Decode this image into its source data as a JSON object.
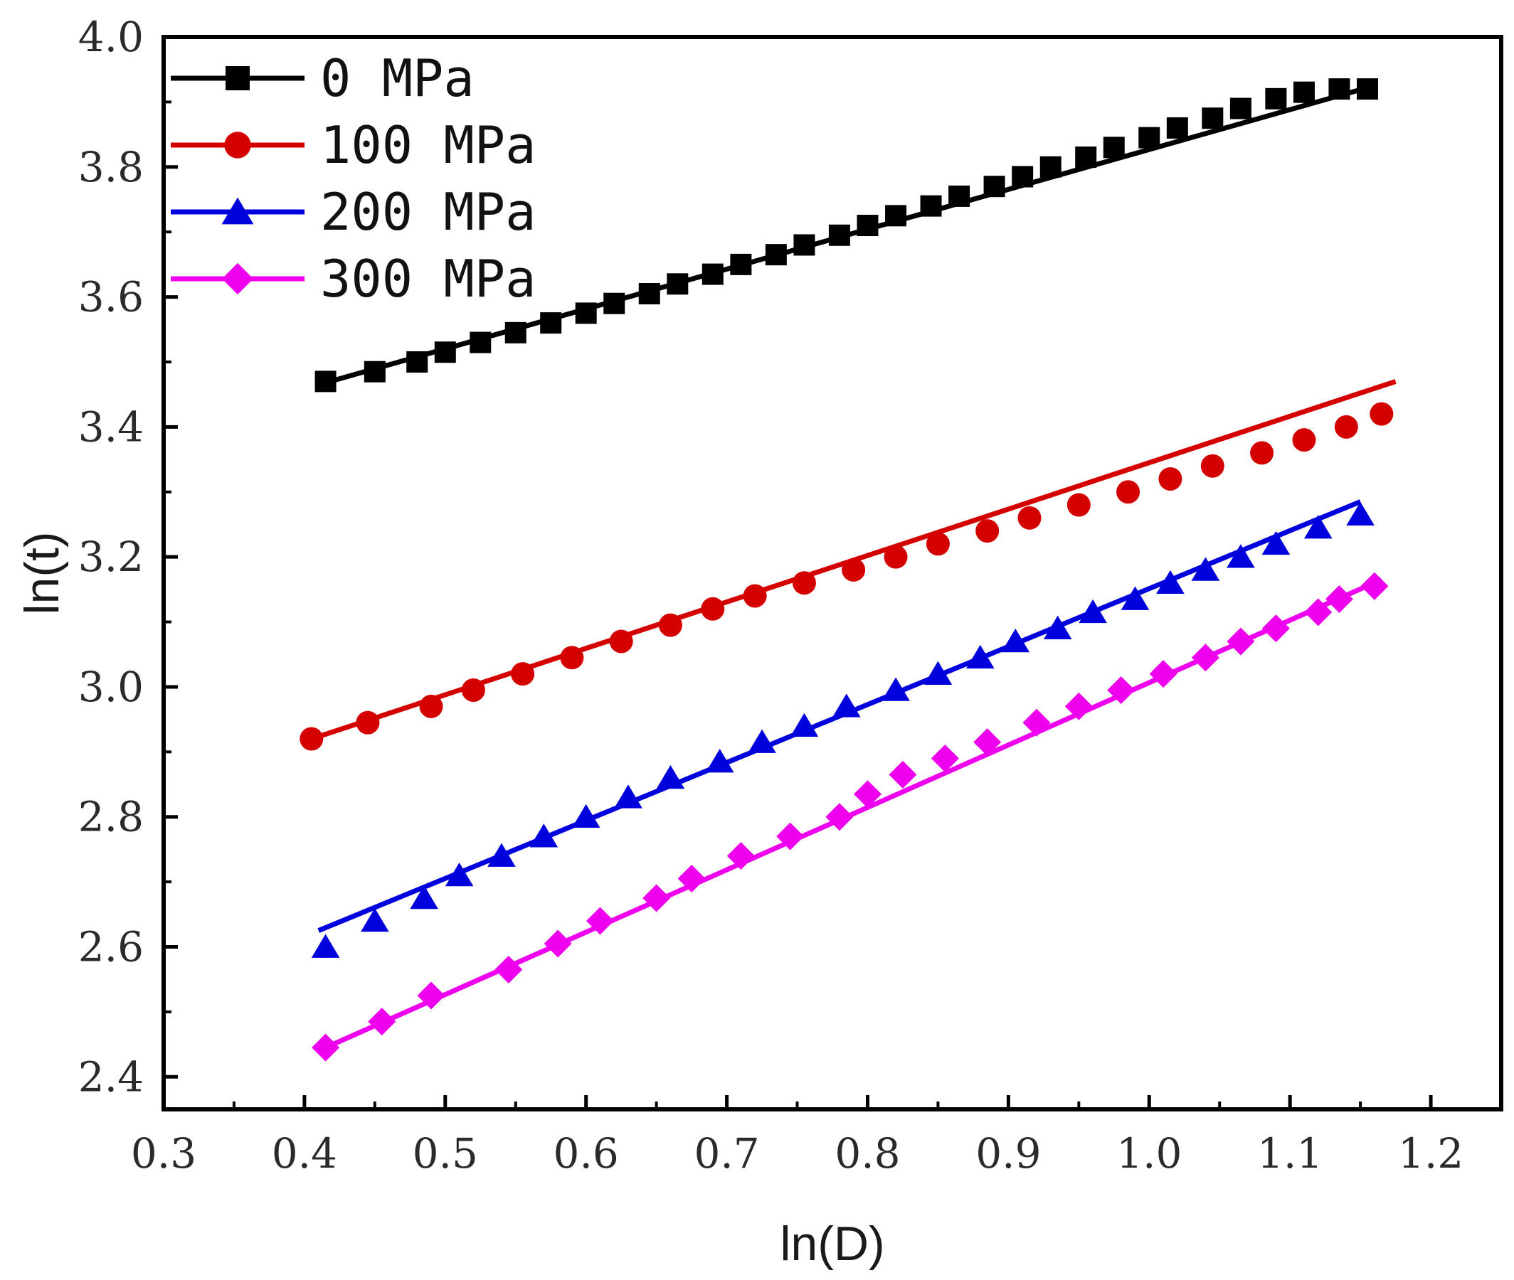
{
  "chart_data": {
    "type": "line",
    "title": "",
    "xlabel": "ln(D)",
    "ylabel": "ln(t)",
    "xlim": [
      0.3,
      1.25
    ],
    "ylim": [
      2.35,
      4.0
    ],
    "xticks": [
      0.3,
      0.4,
      0.5,
      0.6,
      0.7,
      0.8,
      0.9,
      1.0,
      1.1,
      1.2
    ],
    "xtick_labels": [
      "0.3",
      "0.4",
      "0.5",
      "0.6",
      "0.7",
      "0.8",
      "0.9",
      "1.0",
      "1.1",
      "1.2"
    ],
    "yticks": [
      2.4,
      2.6,
      2.8,
      3.0,
      3.2,
      3.4,
      3.6,
      3.8,
      4.0
    ],
    "ytick_labels": [
      "2.4",
      "2.6",
      "2.8",
      "3.0",
      "3.2",
      "3.4",
      "3.6",
      "3.8",
      "4.0"
    ],
    "grid": false,
    "legend_position": "top-left",
    "series": [
      {
        "name": "0 MPa",
        "color": "#000000",
        "marker": "square",
        "x": [
          0.415,
          0.45,
          0.48,
          0.5,
          0.525,
          0.55,
          0.575,
          0.6,
          0.62,
          0.645,
          0.665,
          0.69,
          0.71,
          0.735,
          0.755,
          0.78,
          0.8,
          0.82,
          0.845,
          0.865,
          0.89,
          0.91,
          0.93,
          0.955,
          0.975,
          1.0,
          1.02,
          1.045,
          1.065,
          1.09,
          1.11,
          1.135,
          1.155
        ],
        "y": [
          3.47,
          3.485,
          3.5,
          3.515,
          3.53,
          3.545,
          3.56,
          3.575,
          3.59,
          3.605,
          3.62,
          3.635,
          3.65,
          3.665,
          3.68,
          3.695,
          3.71,
          3.725,
          3.74,
          3.755,
          3.77,
          3.785,
          3.8,
          3.815,
          3.83,
          3.845,
          3.86,
          3.875,
          3.89,
          3.905,
          3.915,
          3.92,
          3.92
        ],
        "fit": [
          [
            0.415,
            3.468
          ],
          [
            1.16,
            3.925
          ]
        ]
      },
      {
        "name": "100 MPa",
        "color": "#d40000",
        "marker": "circle",
        "x": [
          0.405,
          0.445,
          0.49,
          0.52,
          0.555,
          0.59,
          0.625,
          0.66,
          0.69,
          0.72,
          0.755,
          0.79,
          0.82,
          0.85,
          0.885,
          0.915,
          0.95,
          0.985,
          1.015,
          1.045,
          1.08,
          1.11,
          1.14,
          1.165
        ],
        "y": [
          2.92,
          2.945,
          2.97,
          2.995,
          3.02,
          3.045,
          3.07,
          3.095,
          3.12,
          3.14,
          3.16,
          3.18,
          3.2,
          3.22,
          3.24,
          3.26,
          3.28,
          3.3,
          3.32,
          3.34,
          3.36,
          3.38,
          3.4,
          3.42
        ],
        "fit": [
          [
            0.405,
            2.92
          ],
          [
            1.175,
            3.47
          ]
        ]
      },
      {
        "name": "200 MPa",
        "color": "#0000dd",
        "marker": "triangle",
        "x": [
          0.415,
          0.45,
          0.485,
          0.51,
          0.54,
          0.57,
          0.6,
          0.63,
          0.66,
          0.695,
          0.725,
          0.755,
          0.785,
          0.82,
          0.85,
          0.88,
          0.905,
          0.935,
          0.96,
          0.99,
          1.015,
          1.04,
          1.065,
          1.09,
          1.12,
          1.15
        ],
        "y": [
          2.6,
          2.64,
          2.675,
          2.71,
          2.74,
          2.77,
          2.8,
          2.83,
          2.86,
          2.885,
          2.915,
          2.94,
          2.97,
          2.995,
          3.02,
          3.045,
          3.07,
          3.09,
          3.115,
          3.135,
          3.16,
          3.18,
          3.2,
          3.22,
          3.245,
          3.265
        ],
        "fit": [
          [
            0.41,
            2.625
          ],
          [
            1.15,
            3.285
          ]
        ]
      },
      {
        "name": "300 MPa",
        "color": "#ee00ee",
        "marker": "diamond",
        "x": [
          0.415,
          0.455,
          0.49,
          0.545,
          0.58,
          0.61,
          0.65,
          0.675,
          0.71,
          0.745,
          0.78,
          0.8,
          0.825,
          0.855,
          0.885,
          0.92,
          0.95,
          0.98,
          1.01,
          1.04,
          1.065,
          1.09,
          1.12,
          1.135,
          1.16
        ],
        "y": [
          2.445,
          2.485,
          2.525,
          2.565,
          2.605,
          2.64,
          2.675,
          2.705,
          2.74,
          2.77,
          2.8,
          2.835,
          2.865,
          2.89,
          2.915,
          2.945,
          2.97,
          2.995,
          3.02,
          3.045,
          3.07,
          3.09,
          3.115,
          3.135,
          3.155
        ],
        "fit": [
          [
            0.415,
            2.445
          ],
          [
            1.165,
            3.165
          ]
        ]
      }
    ]
  }
}
